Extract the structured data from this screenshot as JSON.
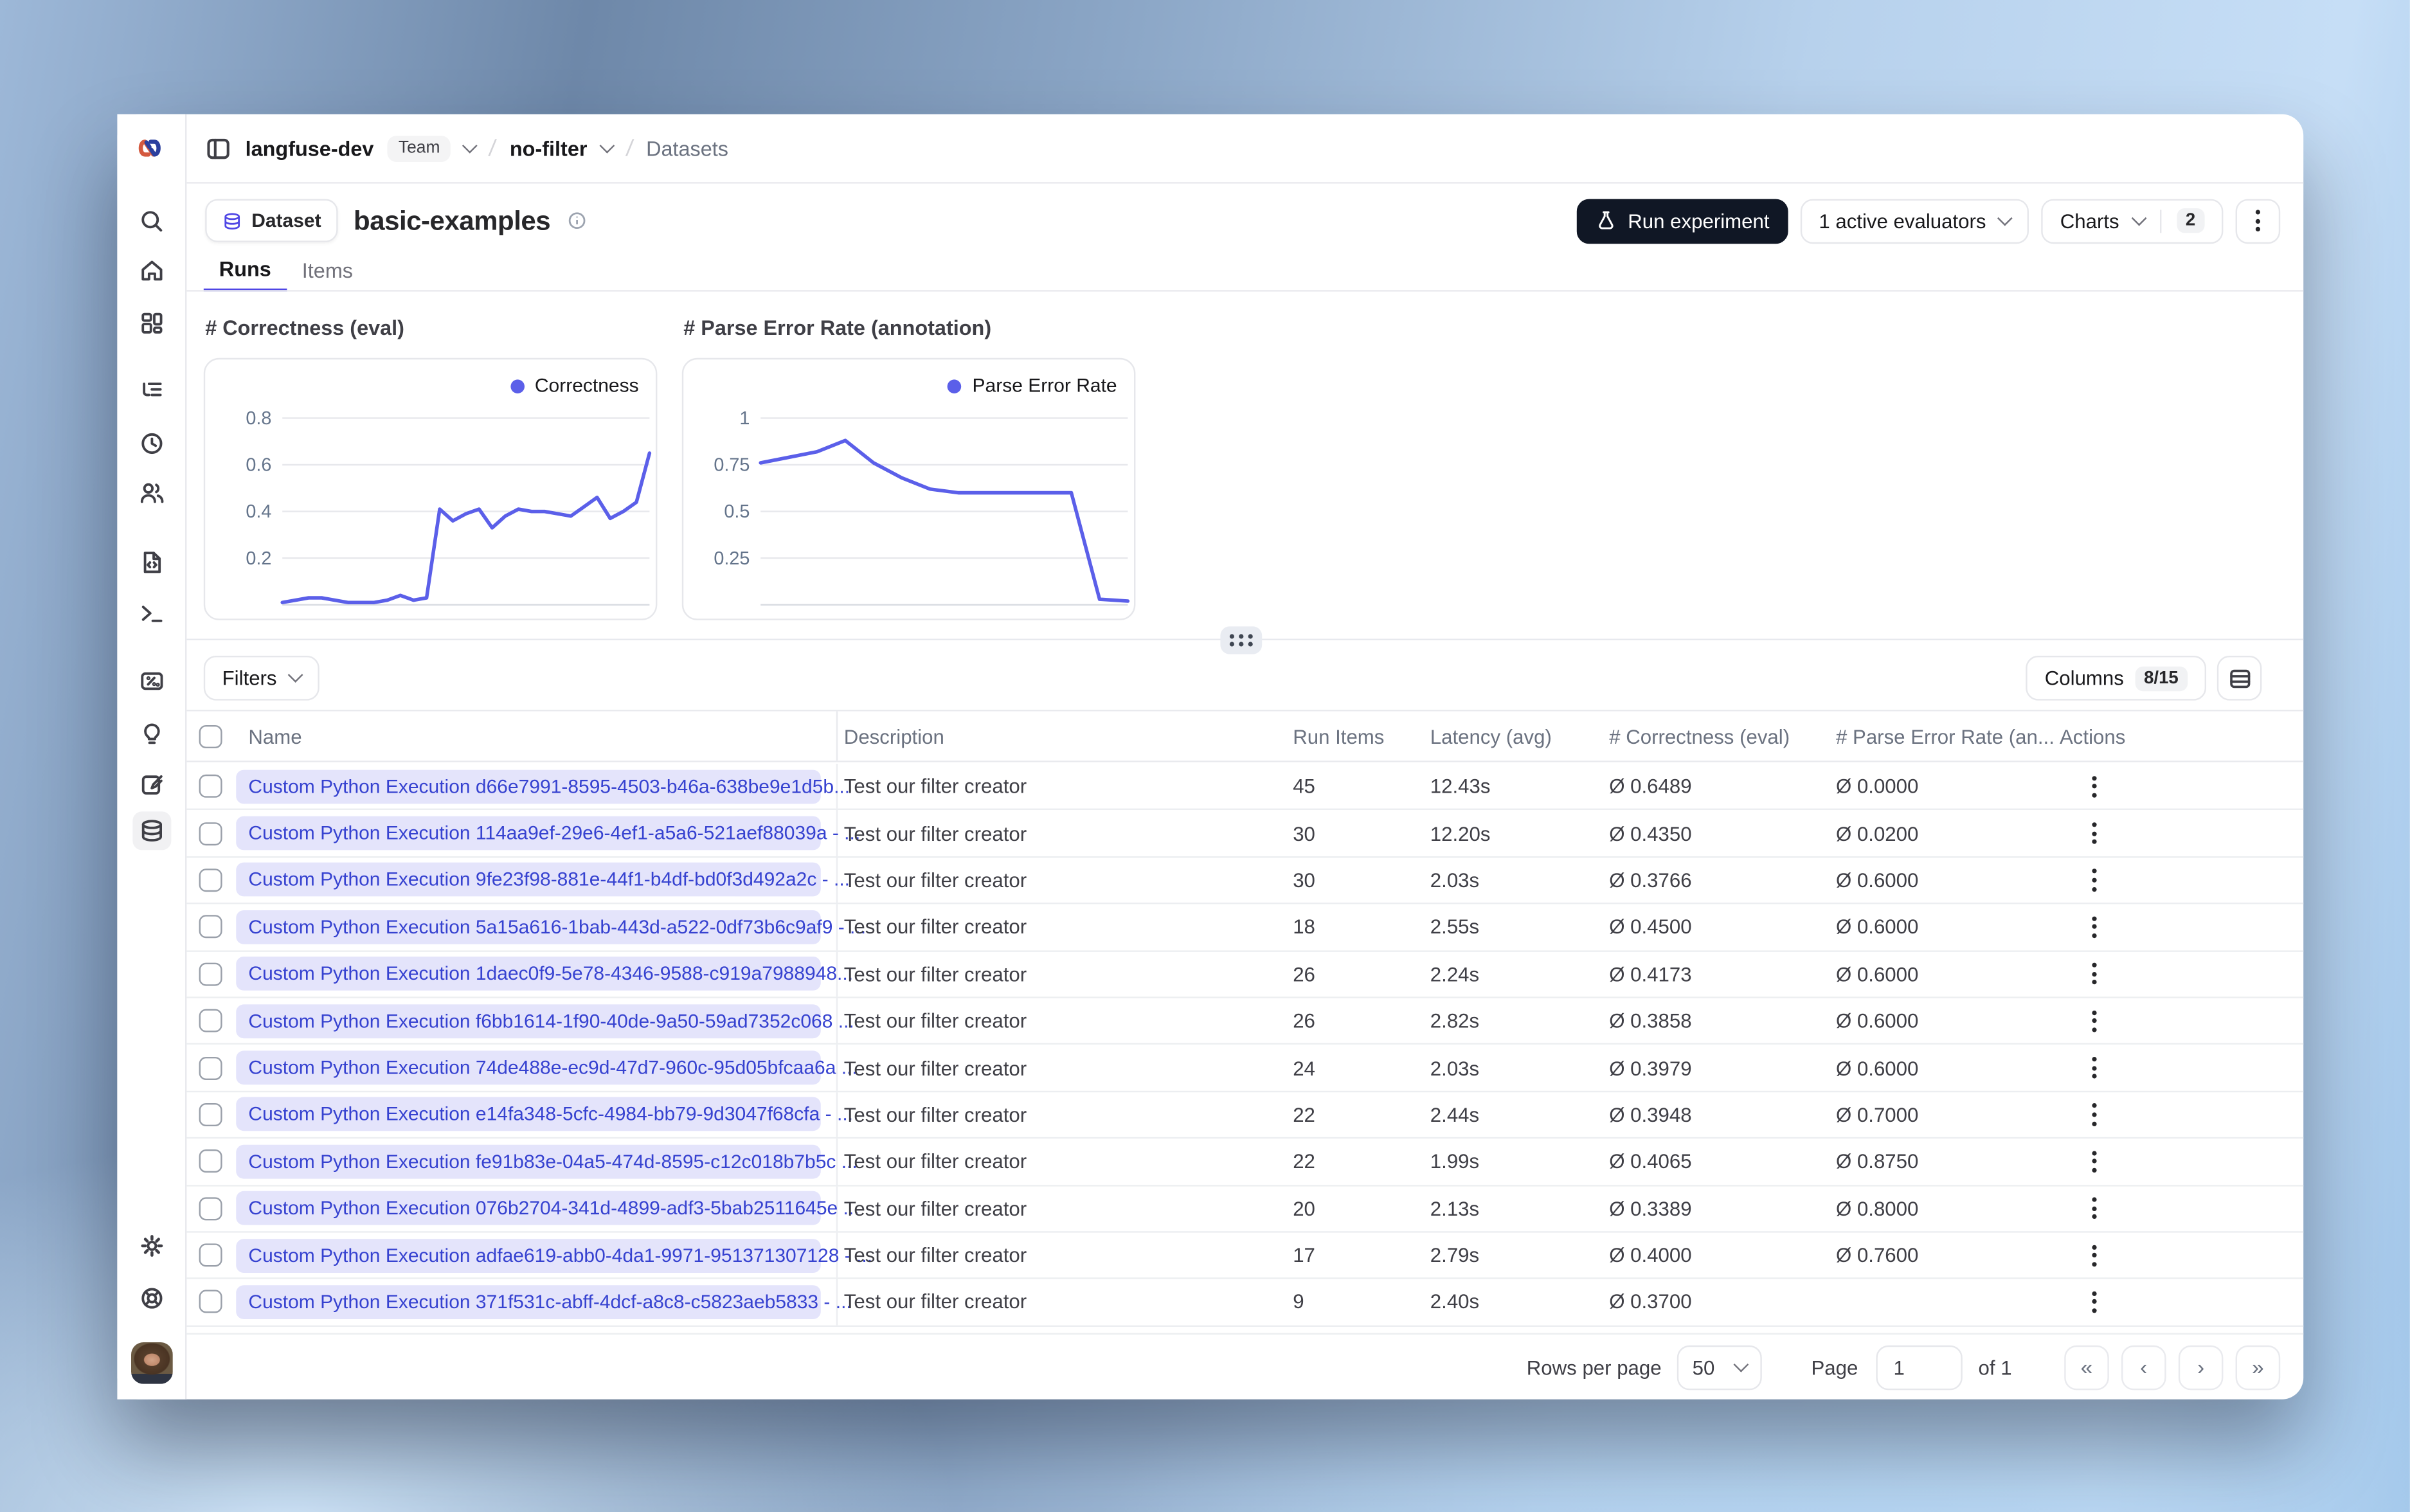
{
  "colors": {
    "accent": "#4f46e5",
    "chart_line": "#5b5fe9",
    "pill_bg": "#e4e4fb",
    "pill_text": "#3642d0",
    "dark_button": "#101725"
  },
  "header": {
    "org": "langfuse-dev",
    "org_badge": "Team",
    "project": "no-filter",
    "section": "Datasets"
  },
  "sidebar": {
    "items": [
      "search",
      "home",
      "dashboards",
      "tracing",
      "sessions",
      "users",
      "prompts",
      "playground",
      "evaluators",
      "insights",
      "annotation-queues",
      "datasets",
      "settings",
      "support"
    ],
    "active_item": "datasets"
  },
  "dataset": {
    "type_label": "Dataset",
    "name": "basic-examples"
  },
  "toolbar": {
    "run_experiment": "Run experiment",
    "evaluators": "1 active evaluators",
    "charts_label": "Charts",
    "charts_count": "2"
  },
  "tabs": [
    {
      "label": "Runs",
      "active": true
    },
    {
      "label": "Items",
      "active": false
    }
  ],
  "chart_data": [
    {
      "type": "line",
      "title": "# Correctness (eval)",
      "legend": "Correctness",
      "color": "#5b5fe9",
      "yticks": [
        0.2,
        0.4,
        0.6,
        0.8
      ],
      "ylim": [
        0,
        0.85
      ],
      "grid": true,
      "legend_position": "top-right",
      "values": [
        0.01,
        0.02,
        0.03,
        0.03,
        0.02,
        0.01,
        0.01,
        0.01,
        0.02,
        0.04,
        0.02,
        0.03,
        0.41,
        0.36,
        0.39,
        0.41,
        0.33,
        0.38,
        0.41,
        0.4,
        0.4,
        0.39,
        0.38,
        0.42,
        0.46,
        0.37,
        0.4,
        0.44,
        0.65
      ]
    },
    {
      "type": "line",
      "title": "# Parse Error Rate (annotation)",
      "legend": "Parse Error Rate",
      "color": "#5b5fe9",
      "yticks": [
        0.25,
        0.5,
        0.75,
        1
      ],
      "ylim": [
        0,
        1.05
      ],
      "grid": true,
      "legend_position": "top-right",
      "values": [
        0.76,
        0.79,
        0.82,
        0.88,
        0.76,
        0.68,
        0.62,
        0.6,
        0.6,
        0.6,
        0.6,
        0.6,
        0.03,
        0.02
      ]
    }
  ],
  "filters": {
    "label": "Filters"
  },
  "columns_button": {
    "label": "Columns",
    "count": "8/15"
  },
  "table": {
    "columns": [
      "Name",
      "Description",
      "Run Items",
      "Latency (avg)",
      "# Correctness (eval)",
      "# Parse Error Rate (an...",
      "Actions"
    ],
    "rows": [
      {
        "name": "Custom Python Execution d66e7991-8595-4503-b46a-638be9e1d5b...",
        "description": "Test our filter creator",
        "run_items": "45",
        "latency": "12.43s",
        "correctness": "Ø 0.6489",
        "parse_error_rate": "Ø 0.0000"
      },
      {
        "name": "Custom Python Execution 114aa9ef-29e6-4ef1-a5a6-521aef88039a - ...",
        "description": "Test our filter creator",
        "run_items": "30",
        "latency": "12.20s",
        "correctness": "Ø 0.4350",
        "parse_error_rate": "Ø 0.0200"
      },
      {
        "name": "Custom Python Execution 9fe23f98-881e-44f1-b4df-bd0f3d492a2c - ...",
        "description": "Test our filter creator",
        "run_items": "30",
        "latency": "2.03s",
        "correctness": "Ø 0.3766",
        "parse_error_rate": "Ø 0.6000"
      },
      {
        "name": "Custom Python Execution 5a15a616-1bab-443d-a522-0df73b6c9af9 - ...",
        "description": "Test our filter creator",
        "run_items": "18",
        "latency": "2.55s",
        "correctness": "Ø 0.4500",
        "parse_error_rate": "Ø 0.6000"
      },
      {
        "name": "Custom Python Execution 1daec0f9-5e78-4346-9588-c919a7988948...",
        "description": "Test our filter creator",
        "run_items": "26",
        "latency": "2.24s",
        "correctness": "Ø 0.4173",
        "parse_error_rate": "Ø 0.6000"
      },
      {
        "name": "Custom Python Execution f6bb1614-1f90-40de-9a50-59ad7352c068 ...",
        "description": "Test our filter creator",
        "run_items": "26",
        "latency": "2.82s",
        "correctness": "Ø 0.3858",
        "parse_error_rate": "Ø 0.6000"
      },
      {
        "name": "Custom Python Execution 74de488e-ec9d-47d7-960c-95d05bfcaa6a ...",
        "description": "Test our filter creator",
        "run_items": "24",
        "latency": "2.03s",
        "correctness": "Ø 0.3979",
        "parse_error_rate": "Ø 0.6000"
      },
      {
        "name": "Custom Python Execution e14fa348-5cfc-4984-bb79-9d3047f68cfa - ...",
        "description": "Test our filter creator",
        "run_items": "22",
        "latency": "2.44s",
        "correctness": "Ø 0.3948",
        "parse_error_rate": "Ø 0.7000"
      },
      {
        "name": "Custom Python Execution fe91b83e-04a5-474d-8595-c12c018b7b5c ...",
        "description": "Test our filter creator",
        "run_items": "22",
        "latency": "1.99s",
        "correctness": "Ø 0.4065",
        "parse_error_rate": "Ø 0.8750"
      },
      {
        "name": "Custom Python Execution 076b2704-341d-4899-adf3-5bab2511645e ...",
        "description": "Test our filter creator",
        "run_items": "20",
        "latency": "2.13s",
        "correctness": "Ø 0.3389",
        "parse_error_rate": "Ø 0.8000"
      },
      {
        "name": "Custom Python Execution adfae619-abb0-4da1-9971-951371307128 - ...",
        "description": "Test our filter creator",
        "run_items": "17",
        "latency": "2.79s",
        "correctness": "Ø 0.4000",
        "parse_error_rate": "Ø 0.7600"
      },
      {
        "name": "Custom Python Execution 371f531c-abff-4dcf-a8c8-c5823aeb5833 - ...",
        "description": "Test our filter creator",
        "run_items": "9",
        "latency": "2.40s",
        "correctness": "Ø 0.3700",
        "parse_error_rate": ""
      }
    ]
  },
  "footer": {
    "rows_per_page_label": "Rows per page",
    "rows_per_page_value": "50",
    "page_label": "Page",
    "page_value": "1",
    "of_label": "of 1"
  }
}
